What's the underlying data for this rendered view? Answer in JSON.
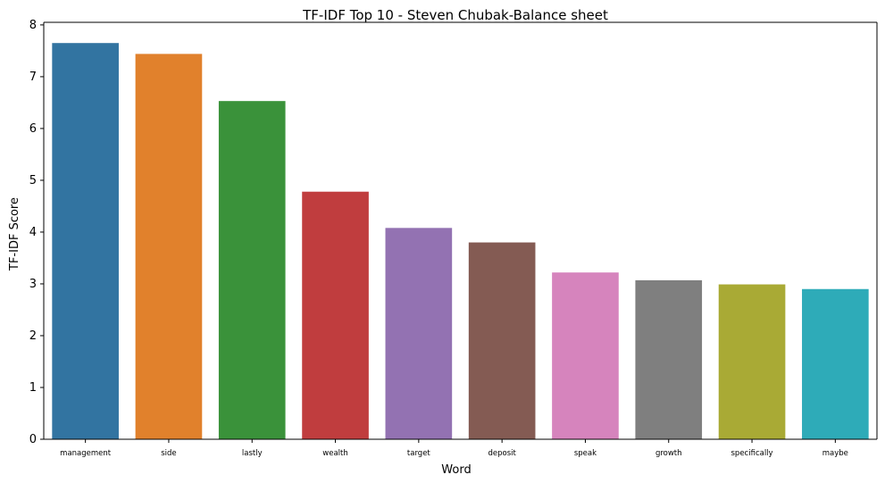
{
  "chart_data": {
    "type": "bar",
    "title": "TF-IDF Top 10 - Steven Chubak-Balance sheet",
    "xlabel": "Word",
    "ylabel": "TF-IDF Score",
    "categories": [
      "management",
      "side",
      "lastly",
      "wealth",
      "target",
      "deposit",
      "speak",
      "growth",
      "specifically",
      "maybe"
    ],
    "values": [
      7.65,
      7.44,
      6.53,
      4.78,
      4.08,
      3.8,
      3.22,
      3.07,
      2.99,
      2.9
    ],
    "ylim": [
      0,
      8.05
    ],
    "yticks": [
      "0",
      "1",
      "2",
      "3",
      "4",
      "5",
      "6",
      "7",
      "8"
    ],
    "colors": [
      "#3274a1",
      "#e1812c",
      "#3a923a",
      "#c03d3e",
      "#9372b2",
      "#845b53",
      "#d684bd",
      "#7f7f7f",
      "#a9aa35",
      "#2eabb8"
    ],
    "grid": false,
    "legend": "none"
  }
}
